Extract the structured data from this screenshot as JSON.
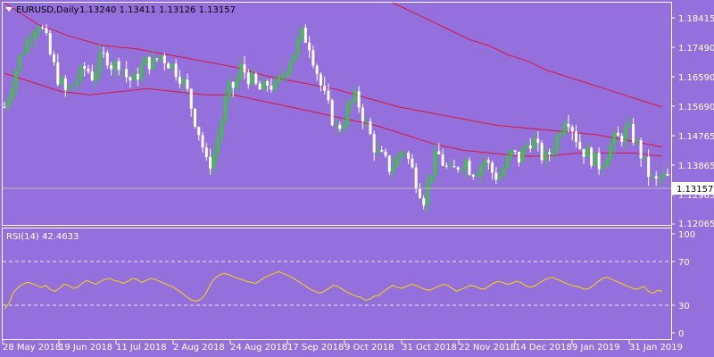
{
  "header": {
    "symbol_tf": "EURUSD,Daily",
    "ohlc": "1.13240 1.13411 1.13126 1.13157",
    "dropdown_icon": "triangle-down-icon"
  },
  "price_axis": {
    "labels": [
      "1.18415",
      "1.17490",
      "1.16590",
      "1.15690",
      "1.14765",
      "1.13865",
      "1.12965",
      "1.12065"
    ],
    "current_price": "1.13157"
  },
  "rsi": {
    "title": "RSI(14) 42.4633",
    "levels": [
      "100",
      "70",
      "30",
      "0"
    ]
  },
  "time_axis": {
    "labels": [
      "28 May 2018",
      "19 Jun 2018",
      "11 Jul 2018",
      "2 Aug 2018",
      "24 Aug 2018",
      "17 Sep 2018",
      "9 Oct 2018",
      "31 Oct 2018",
      "22 Nov 2018",
      "14 Dec 2018",
      "9 Jan 2019",
      "31 Jan 2019"
    ]
  },
  "colors": {
    "background": "#9370DB",
    "bull_candle": "#32CD32",
    "bear_candle": "#FFFFFF",
    "ma": "#DC143C",
    "rsi_line": "#FFD700",
    "grid": "#ffffff"
  },
  "chart_data": [
    {
      "type": "candlestick",
      "title": "EURUSD,Daily",
      "ylim": [
        1.1166,
        1.189
      ],
      "x": [
        "28 May 2018",
        "19 Jun 2018",
        "11 Jul 2018",
        "2 Aug 2018",
        "24 Aug 2018",
        "17 Sep 2018",
        "9 Oct 2018",
        "31 Oct 2018",
        "22 Nov 2018",
        "14 Dec 2018",
        "9 Jan 2019",
        "31 Jan 2019"
      ],
      "close_path": [
        1.155,
        1.162,
        1.17,
        1.175,
        1.18,
        1.183,
        1.178,
        1.17,
        1.164,
        1.16,
        1.162,
        1.165,
        1.168,
        1.165,
        1.17,
        1.172,
        1.168,
        1.17,
        1.165,
        1.163,
        1.167,
        1.17,
        1.169,
        1.172,
        1.17,
        1.168,
        1.165,
        1.16,
        1.152,
        1.145,
        1.135,
        1.14,
        1.15,
        1.16,
        1.162,
        1.168,
        1.165,
        1.162,
        1.16,
        1.163,
        1.161,
        1.165,
        1.17,
        1.174,
        1.179,
        1.176,
        1.168,
        1.16,
        1.154,
        1.148,
        1.15,
        1.156,
        1.158,
        1.152,
        1.146,
        1.14,
        1.138,
        1.135,
        1.138,
        1.142,
        1.136,
        1.13,
        1.125,
        1.134,
        1.14,
        1.136,
        1.133,
        1.136,
        1.138,
        1.134,
        1.135,
        1.138,
        1.134,
        1.132,
        1.136,
        1.14,
        1.138,
        1.142,
        1.145,
        1.14,
        1.138,
        1.142,
        1.147,
        1.153,
        1.148,
        1.142,
        1.14,
        1.138,
        1.136,
        1.14,
        1.144,
        1.145,
        1.148,
        1.145,
        1.14,
        1.134,
        1.13,
        1.132,
        1.1316
      ],
      "moving_averages": [
        {
          "period": "fast",
          "values": [
            1.166,
            1.163,
            1.16,
            1.159,
            1.16,
            1.161,
            1.16,
            1.159,
            1.159,
            1.157,
            1.155,
            1.153,
            1.151,
            1.149,
            1.146,
            1.143,
            1.141,
            1.14,
            1.139,
            1.139,
            1.14,
            1.14,
            1.14,
            1.139
          ]
        },
        {
          "period": "slow",
          "values": [
            1.189,
            1.182,
            1.178,
            1.175,
            1.174,
            1.172,
            1.17,
            1.168,
            1.165,
            1.163,
            1.161,
            1.158,
            1.155,
            1.153,
            1.151,
            1.149,
            1.148,
            1.147,
            1.146,
            1.144,
            1.142
          ]
        },
        {
          "period": "long",
          "values": [
            1.189,
            1.186,
            1.183,
            1.18,
            1.177,
            1.175,
            1.172,
            1.17,
            1.167,
            1.165,
            1.163,
            1.161,
            1.159,
            1.157,
            1.155
          ]
        }
      ]
    },
    {
      "type": "line",
      "title": "RSI(14) 42.4633",
      "ylim": [
        0,
        100
      ],
      "levels": [
        70,
        30
      ],
      "values": [
        24,
        30,
        41,
        46,
        49,
        51,
        50,
        48,
        46,
        48,
        44,
        42,
        45,
        49,
        48,
        45,
        46,
        50,
        53,
        51,
        49,
        52,
        54,
        55,
        53,
        52,
        50,
        52,
        55,
        54,
        51,
        53,
        55,
        54,
        52,
        50,
        48,
        46,
        43,
        40,
        36,
        33,
        32,
        34,
        39,
        48,
        55,
        58,
        60,
        59,
        57,
        55,
        54,
        52,
        51,
        50,
        53,
        56,
        58,
        60,
        62,
        60,
        58,
        56,
        53,
        50,
        47,
        44,
        42,
        40,
        42,
        45,
        48,
        47,
        44,
        41,
        39,
        37,
        36,
        33,
        34,
        37,
        38,
        42,
        45,
        48,
        46,
        45,
        47,
        49,
        48,
        46,
        44,
        43,
        45,
        47,
        49,
        48,
        45,
        42,
        44,
        46,
        48,
        47,
        45,
        44,
        47,
        50,
        52,
        51,
        49,
        50,
        52,
        51,
        48,
        46,
        47,
        50,
        53,
        55,
        56,
        54,
        52,
        50,
        48,
        47,
        46,
        44,
        45,
        48,
        52,
        55,
        56,
        54,
        52,
        50,
        48,
        46,
        44,
        45,
        47,
        42,
        40,
        43,
        42
      ]
    }
  ]
}
